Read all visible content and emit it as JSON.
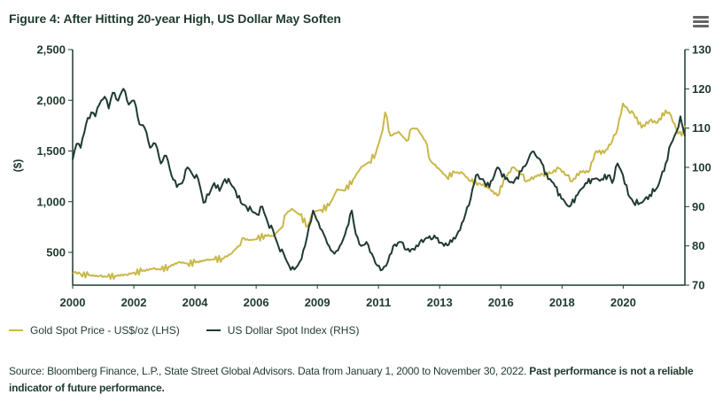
{
  "header": {
    "title": "Figure 4: After Hitting 20-year High, US Dollar May Soften",
    "menu_icon": "hamburger-menu-icon"
  },
  "colors": {
    "gold": "#c9b84a",
    "usd": "#1f3a2e",
    "axis": "#1f3a2e",
    "text": "#1f3a2e"
  },
  "legend": [
    {
      "label": "Gold Spot Price - US$/oz (LHS)",
      "color": "#c9b84a"
    },
    {
      "label": "US Dollar Spot Index (RHS)",
      "color": "#1f3a2e"
    }
  ],
  "source": {
    "text": "Source: Bloomberg Finance, L.P., State Street Global Advisors. Data from January 1, 2000 to November 30, 2022.",
    "bold": "Past performance is not a reliable indicator of future performance."
  },
  "chart_data": {
    "type": "line",
    "title": "Figure 4: After Hitting 20-year High, US Dollar May Soften",
    "xlabel": "",
    "ylabel": "($)",
    "y2label": "",
    "x_tick_labels": [
      "2000",
      "2002",
      "2004",
      "2006",
      "2009",
      "2011",
      "2013",
      "2016",
      "2018",
      "2020"
    ],
    "x_tick_positions": [
      2000.0,
      2002.29,
      2004.58,
      2006.87,
      2009.16,
      2011.45,
      2013.74,
      2016.03,
      2018.32,
      2020.61
    ],
    "xlim": [
      2000.0,
      2022.92
    ],
    "ylim": [
      180,
      2500
    ],
    "y_ticks": [
      500,
      1000,
      1500,
      2000,
      2500
    ],
    "y_tick_labels": [
      "500",
      "1,000",
      "1,500",
      "2,000",
      "2,500"
    ],
    "y2lim": [
      70,
      130
    ],
    "y2_ticks": [
      70,
      80,
      90,
      100,
      110,
      120,
      130
    ],
    "y2_tick_labels": [
      "70",
      "80",
      "90",
      "100",
      "110",
      "120",
      "130"
    ],
    "grid": false,
    "legend_position": "bottom-left",
    "series": [
      {
        "name": "Gold Spot Price - US$/oz (LHS)",
        "axis": "left",
        "x": [
          2000.0,
          2000.1,
          2000.3,
          2000.6,
          2001.0,
          2001.3,
          2001.6,
          2002.0,
          2002.3,
          2002.6,
          2003.0,
          2003.3,
          2003.6,
          2004.0,
          2004.3,
          2004.6,
          2005.0,
          2005.3,
          2005.6,
          2005.9,
          2006.2,
          2006.35,
          2006.6,
          2006.9,
          2007.2,
          2007.5,
          2007.8,
          2008.0,
          2008.2,
          2008.5,
          2008.8,
          2009.0,
          2009.3,
          2009.6,
          2009.9,
          2010.2,
          2010.5,
          2010.8,
          2011.1,
          2011.35,
          2011.6,
          2011.7,
          2011.9,
          2012.2,
          2012.5,
          2012.7,
          2012.9,
          2013.2,
          2013.4,
          2013.7,
          2014.0,
          2014.3,
          2014.6,
          2014.9,
          2015.2,
          2015.5,
          2015.9,
          2016.2,
          2016.5,
          2016.8,
          2017.0,
          2017.3,
          2017.6,
          2017.9,
          2018.2,
          2018.5,
          2018.7,
          2019.0,
          2019.3,
          2019.6,
          2019.9,
          2020.2,
          2020.4,
          2020.6,
          2020.8,
          2021.0,
          2021.3,
          2021.6,
          2021.9,
          2022.2,
          2022.4,
          2022.6,
          2022.8,
          2022.92
        ],
        "values": [
          290,
          310,
          285,
          275,
          265,
          260,
          270,
          280,
          300,
          315,
          340,
          330,
          360,
          405,
          390,
          400,
          425,
          430,
          440,
          480,
          560,
          640,
          620,
          630,
          670,
          660,
          740,
          880,
          930,
          870,
          760,
          900,
          920,
          960,
          1120,
          1110,
          1220,
          1340,
          1390,
          1480,
          1700,
          1880,
          1650,
          1690,
          1600,
          1720,
          1720,
          1600,
          1400,
          1330,
          1240,
          1290,
          1280,
          1200,
          1180,
          1150,
          1060,
          1240,
          1340,
          1270,
          1200,
          1250,
          1270,
          1280,
          1330,
          1260,
          1200,
          1300,
          1290,
          1500,
          1480,
          1600,
          1720,
          1970,
          1900,
          1870,
          1730,
          1800,
          1780,
          1900,
          1850,
          1710,
          1650,
          1750
        ]
      },
      {
        "name": "US Dollar Spot Index (RHS)",
        "axis": "right",
        "x": [
          2000.0,
          2000.15,
          2000.3,
          2000.5,
          2000.7,
          2000.85,
          2001.0,
          2001.2,
          2001.35,
          2001.5,
          2001.7,
          2001.9,
          2002.1,
          2002.3,
          2002.5,
          2002.7,
          2002.9,
          2003.1,
          2003.3,
          2003.5,
          2003.7,
          2003.9,
          2004.1,
          2004.3,
          2004.5,
          2004.7,
          2004.9,
          2005.1,
          2005.3,
          2005.5,
          2005.7,
          2005.9,
          2006.1,
          2006.3,
          2006.5,
          2006.7,
          2006.9,
          2007.1,
          2007.3,
          2007.5,
          2007.7,
          2007.9,
          2008.1,
          2008.3,
          2008.5,
          2008.7,
          2008.85,
          2009.0,
          2009.2,
          2009.4,
          2009.6,
          2009.8,
          2010.0,
          2010.2,
          2010.45,
          2010.6,
          2010.8,
          2011.0,
          2011.2,
          2011.4,
          2011.6,
          2011.8,
          2012.0,
          2012.3,
          2012.5,
          2012.8,
          2013.0,
          2013.3,
          2013.6,
          2013.9,
          2014.2,
          2014.5,
          2014.7,
          2014.9,
          2015.1,
          2015.3,
          2015.6,
          2015.9,
          2016.2,
          2016.5,
          2016.8,
          2017.0,
          2017.2,
          2017.5,
          2017.8,
          2018.0,
          2018.3,
          2018.6,
          2018.9,
          2019.2,
          2019.5,
          2019.8,
          2020.1,
          2020.2,
          2020.4,
          2020.6,
          2020.8,
          2021.0,
          2021.3,
          2021.6,
          2021.9,
          2022.2,
          2022.4,
          2022.6,
          2022.75,
          2022.92
        ],
        "values": [
          102,
          106,
          105,
          111,
          114,
          113,
          116,
          118,
          115,
          119,
          117,
          120,
          116,
          117,
          111,
          110,
          105,
          106,
          101,
          103,
          98,
          95,
          96,
          100,
          98,
          97,
          91,
          93,
          96,
          94,
          97,
          96,
          94,
          91,
          90,
          89,
          88,
          90,
          86,
          84,
          80,
          78,
          75,
          74,
          76,
          80,
          85,
          89,
          86,
          83,
          80,
          78,
          80,
          83,
          89,
          83,
          80,
          81,
          78,
          75,
          74,
          76,
          80,
          81,
          79,
          79,
          81,
          82,
          82,
          80,
          81,
          84,
          88,
          92,
          98,
          97,
          95,
          100,
          97,
          96,
          99,
          101,
          104,
          102,
          97,
          96,
          92,
          90,
          93,
          96,
          97,
          97,
          98,
          96,
          101,
          98,
          93,
          91,
          91,
          93,
          95,
          101,
          106,
          109,
          113,
          108
        ]
      }
    ]
  }
}
